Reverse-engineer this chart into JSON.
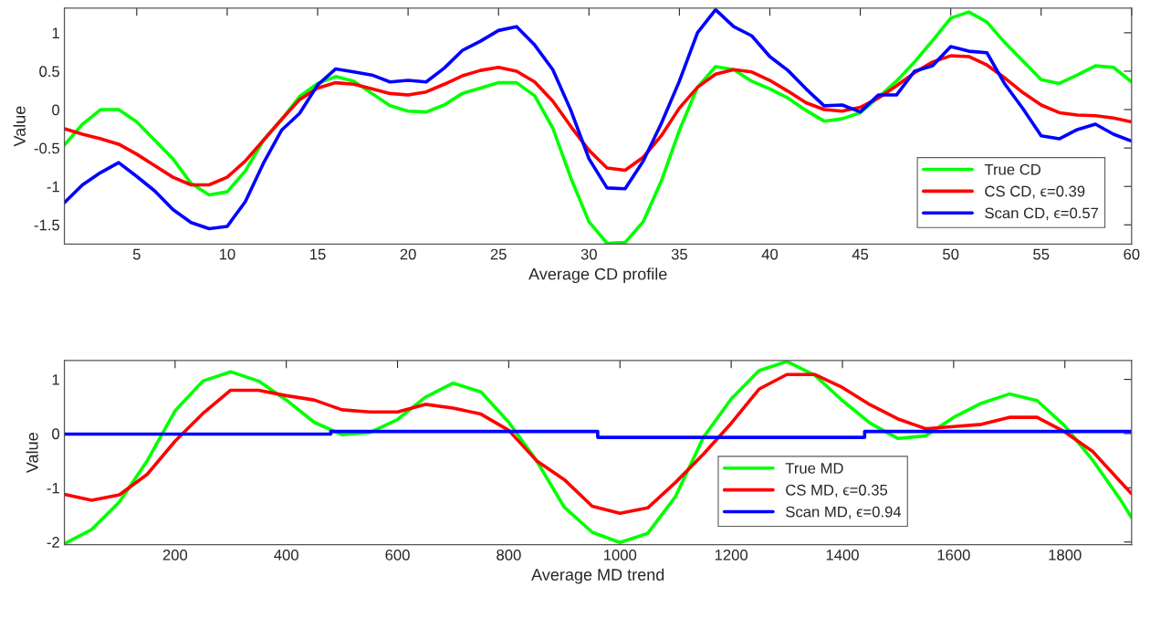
{
  "chart_data": [
    {
      "type": "line",
      "xlabel": "Average CD profile",
      "ylabel": "Value",
      "xlim": [
        1,
        60
      ],
      "ylim": [
        -1.75,
        1.32
      ],
      "xticks": [
        5,
        10,
        15,
        20,
        25,
        30,
        35,
        40,
        45,
        50,
        55,
        60
      ],
      "yticks": [
        -1.5,
        -1,
        -0.5,
        0,
        0.5,
        1
      ],
      "grid": false,
      "legend": "right",
      "marker": "none",
      "line_style": "solid",
      "x": [
        1,
        2,
        3,
        4,
        5,
        6,
        7,
        8,
        9,
        10,
        11,
        12,
        13,
        14,
        15,
        16,
        17,
        18,
        19,
        20,
        21,
        22,
        23,
        24,
        25,
        26,
        27,
        28,
        29,
        30,
        31,
        32,
        33,
        34,
        35,
        36,
        37,
        38,
        39,
        40,
        41,
        42,
        43,
        44,
        45,
        46,
        47,
        48,
        49,
        50,
        51,
        52,
        53,
        54,
        55,
        56,
        57,
        58,
        59,
        60
      ],
      "series": [
        {
          "name": "True CD",
          "color": "#00ff00",
          "values": [
            -0.46,
            -0.19,
            0,
            0,
            -0.16,
            -0.4,
            -0.64,
            -0.96,
            -1.11,
            -1.07,
            -0.8,
            -0.4,
            -0.13,
            0.17,
            0.34,
            0.43,
            0.37,
            0.21,
            0.05,
            -0.02,
            -0.03,
            0.06,
            0.21,
            0.28,
            0.35,
            0.35,
            0.18,
            -0.24,
            -0.89,
            -1.46,
            -1.74,
            -1.73,
            -1.46,
            -0.93,
            -0.27,
            0.29,
            0.56,
            0.52,
            0.37,
            0.27,
            0.15,
            -0.01,
            -0.15,
            -0.12,
            -0.04,
            0.16,
            0.37,
            0.62,
            0.9,
            1.19,
            1.27,
            1.14,
            0.87,
            0.63,
            0.39,
            0.34,
            0.45,
            0.57,
            0.55,
            0.36
          ]
        },
        {
          "name": "CS CD, ϵ=0.39",
          "color": "#ff0000",
          "values": [
            -0.25,
            -0.32,
            -0.38,
            -0.45,
            -0.58,
            -0.73,
            -0.88,
            -0.98,
            -0.98,
            -0.88,
            -0.67,
            -0.4,
            -0.13,
            0.13,
            0.28,
            0.35,
            0.33,
            0.27,
            0.21,
            0.19,
            0.23,
            0.33,
            0.44,
            0.51,
            0.55,
            0.5,
            0.36,
            0.11,
            -0.22,
            -0.53,
            -0.76,
            -0.79,
            -0.62,
            -0.34,
            0.02,
            0.29,
            0.46,
            0.52,
            0.49,
            0.38,
            0.24,
            0.09,
            0,
            -0.02,
            0.03,
            0.15,
            0.31,
            0.48,
            0.62,
            0.7,
            0.69,
            0.58,
            0.41,
            0.22,
            0.06,
            -0.04,
            -0.07,
            -0.08,
            -0.11,
            -0.16
          ]
        },
        {
          "name": "Scan CD, ϵ=0.57",
          "color": "#0000ff",
          "values": [
            -1.21,
            -0.98,
            -0.82,
            -0.69,
            -0.87,
            -1.06,
            -1.3,
            -1.47,
            -1.55,
            -1.52,
            -1.2,
            -0.7,
            -0.27,
            -0.05,
            0.32,
            0.53,
            0.49,
            0.45,
            0.36,
            0.38,
            0.36,
            0.54,
            0.77,
            0.89,
            1.03,
            1.08,
            0.84,
            0.52,
            -0.01,
            -0.64,
            -1.02,
            -1.03,
            -0.67,
            -0.18,
            0.37,
            1.0,
            1.3,
            1.08,
            0.96,
            0.69,
            0.51,
            0.27,
            0.05,
            0.06,
            -0.03,
            0.19,
            0.19,
            0.5,
            0.57,
            0.82,
            0.76,
            0.74,
            0.33,
            0.01,
            -0.34,
            -0.38,
            -0.26,
            -0.19,
            -0.32,
            -0.41
          ]
        }
      ]
    },
    {
      "type": "line",
      "xlabel": "Average MD trend",
      "ylabel": "Value",
      "xlim": [
        1,
        1920
      ],
      "ylim": [
        -2.05,
        1.35
      ],
      "xticks": [
        200,
        400,
        600,
        800,
        1000,
        1200,
        1400,
        1600,
        1800
      ],
      "yticks": [
        -2,
        -1,
        0,
        1
      ],
      "grid": false,
      "legend": "bottom right",
      "marker": "none",
      "line_style": "solid",
      "x": [
        1,
        50,
        100,
        150,
        200,
        250,
        300,
        350,
        400,
        450,
        500,
        550,
        600,
        650,
        700,
        750,
        800,
        850,
        900,
        950,
        1000,
        1050,
        1100,
        1150,
        1200,
        1250,
        1300,
        1350,
        1400,
        1450,
        1500,
        1550,
        1600,
        1650,
        1700,
        1750,
        1800,
        1850,
        1900,
        1920
      ],
      "series": [
        {
          "name": "True MD",
          "color": "#00ff00",
          "values": [
            -2.03,
            -1.77,
            -1.26,
            -0.5,
            0.42,
            0.97,
            1.14,
            0.97,
            0.62,
            0.21,
            -0.02,
            0.02,
            0.26,
            0.67,
            0.93,
            0.77,
            0.21,
            -0.5,
            -1.36,
            -1.82,
            -2.01,
            -1.84,
            -1.16,
            -0.07,
            0.64,
            1.16,
            1.33,
            1.08,
            0.61,
            0.19,
            -0.09,
            -0.04,
            0.3,
            0.56,
            0.73,
            0.61,
            0.14,
            -0.49,
            -1.22,
            -1.55
          ]
        },
        {
          "name": "CS MD, ϵ=0.35",
          "color": "#ff0000",
          "values": [
            -1.12,
            -1.23,
            -1.13,
            -0.75,
            -0.14,
            0.37,
            0.8,
            0.8,
            0.7,
            0.62,
            0.44,
            0.4,
            0.4,
            0.54,
            0.47,
            0.36,
            0.06,
            -0.5,
            -0.85,
            -1.34,
            -1.47,
            -1.37,
            -0.9,
            -0.38,
            0.19,
            0.82,
            1.09,
            1.09,
            0.85,
            0.53,
            0.27,
            0.09,
            0.13,
            0.17,
            0.3,
            0.3,
            0.03,
            -0.33,
            -0.89,
            -1.11
          ]
        },
        {
          "name": "Scan MD, ϵ=0.94",
          "color": "#0000ff",
          "x": [
            1,
            480,
            480,
            960,
            960,
            1440,
            1440,
            1920
          ],
          "values": [
            -0.01,
            -0.01,
            0.04,
            0.04,
            -0.07,
            -0.07,
            0.04,
            0.04
          ]
        }
      ]
    }
  ]
}
